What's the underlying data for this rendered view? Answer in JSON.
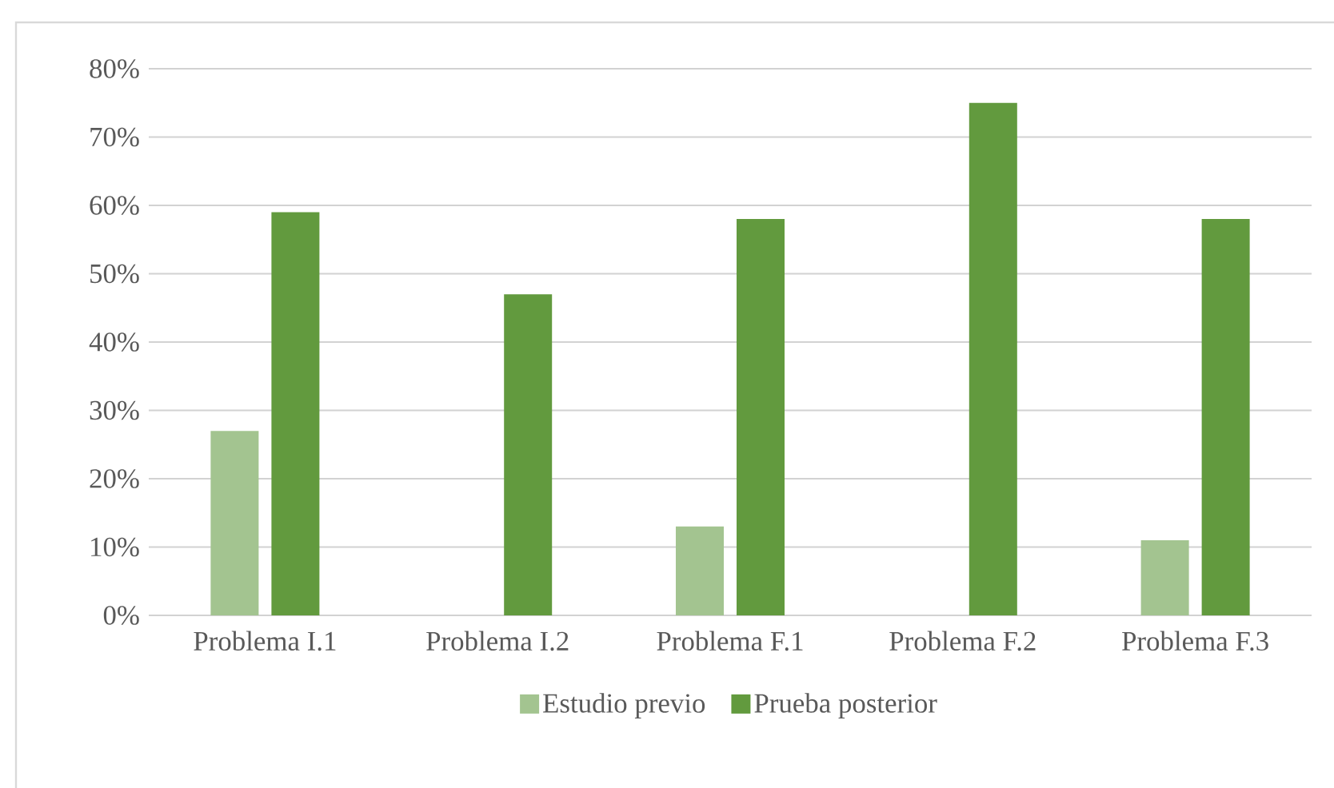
{
  "chart_data": {
    "type": "bar",
    "categories": [
      "Problema I.1",
      "Problema I.2",
      "Problema F.1",
      "Problema F.2",
      "Problema F.3"
    ],
    "series": [
      {
        "name": "Estudio previo",
        "color": "#a3c490",
        "values": [
          27,
          null,
          13,
          null,
          11
        ]
      },
      {
        "name": "Prueba posterior",
        "color": "#629a3e",
        "values": [
          59,
          47,
          58,
          75,
          58
        ]
      }
    ],
    "ylim": [
      0,
      80
    ],
    "yticks": [
      {
        "value": 0,
        "label": "0%"
      },
      {
        "value": 10,
        "label": "10%"
      },
      {
        "value": 20,
        "label": "20%"
      },
      {
        "value": 30,
        "label": "30%"
      },
      {
        "value": 40,
        "label": "40%"
      },
      {
        "value": 50,
        "label": "50%"
      },
      {
        "value": 60,
        "label": "60%"
      },
      {
        "value": 70,
        "label": "70%"
      },
      {
        "value": 80,
        "label": "80%"
      }
    ],
    "grid": "y",
    "legend": "bottom"
  }
}
